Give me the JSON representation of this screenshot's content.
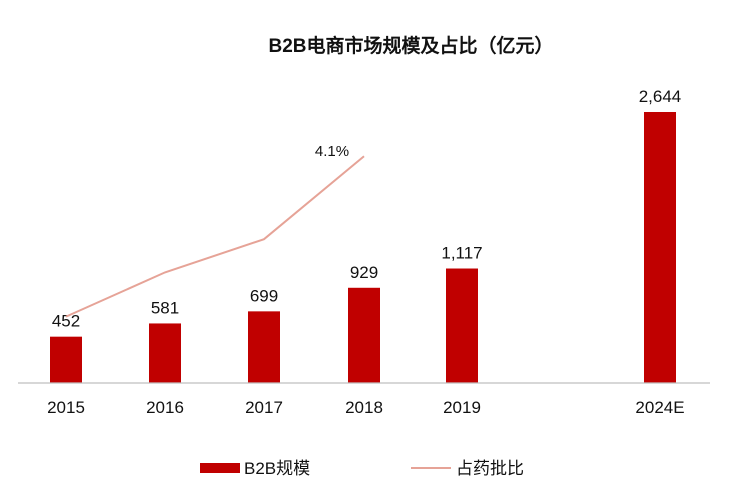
{
  "chart_data": {
    "type": "bar",
    "title": "B2B电商市场规模及占比（亿元）",
    "categories": [
      "2015",
      "2016",
      "2017",
      "2018",
      "2019",
      "2024E"
    ],
    "series": [
      {
        "name": "B2B规模",
        "type": "bar",
        "values": [
          452,
          581,
          699,
          929,
          1117,
          2644
        ],
        "labels": [
          "452",
          "581",
          "699",
          "929",
          "1,117",
          "2,644"
        ],
        "color": "#c00000"
      },
      {
        "name": "占药批比",
        "type": "line",
        "values": [
          1.2,
          2.0,
          2.6,
          4.1,
          null,
          null
        ],
        "labels": [
          "",
          "",
          "",
          "4.1%",
          "",
          ""
        ],
        "color": "#e6a397"
      }
    ],
    "xlabel": "",
    "ylabel": "",
    "ylim": [
      0,
      2644
    ],
    "y2lim": [
      0,
      4.9
    ],
    "grid": false,
    "legend": "bottom"
  }
}
